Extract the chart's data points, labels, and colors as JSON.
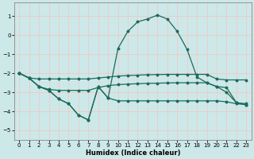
{
  "xlabel": "Humidex (Indice chaleur)",
  "background_color": "#cde8e8",
  "grid_color": "#f2c8c8",
  "line_color": "#1a6b5a",
  "xlim": [
    -0.5,
    23.5
  ],
  "ylim": [
    -5.5,
    1.7
  ],
  "yticks": [
    1,
    0,
    -1,
    -2,
    -3,
    -4,
    -5
  ],
  "xticks": [
    0,
    1,
    2,
    3,
    4,
    5,
    6,
    7,
    8,
    9,
    10,
    11,
    12,
    13,
    14,
    15,
    16,
    17,
    18,
    19,
    20,
    21,
    22,
    23
  ],
  "line1_x": [
    0,
    1,
    2,
    3,
    4,
    5,
    6,
    7,
    8,
    9,
    10,
    11,
    12,
    13,
    14,
    15,
    16,
    17,
    18,
    19,
    20,
    21,
    22,
    23
  ],
  "line1_y": [
    -2.0,
    -2.25,
    -2.7,
    -2.85,
    -2.9,
    -2.9,
    -2.9,
    -2.9,
    -2.75,
    -2.65,
    -2.6,
    -2.57,
    -2.55,
    -2.53,
    -2.52,
    -2.51,
    -2.5,
    -2.5,
    -2.5,
    -2.5,
    -2.7,
    -2.75,
    -3.55,
    -3.6
  ],
  "line2_x": [
    0,
    1,
    2,
    3,
    4,
    5,
    6,
    7,
    8,
    9,
    10,
    11,
    12,
    13,
    14,
    15,
    16,
    17,
    18,
    19,
    20,
    21,
    22,
    23
  ],
  "line2_y": [
    -2.0,
    -2.25,
    -2.7,
    -2.9,
    -3.35,
    -3.6,
    -4.2,
    -4.45,
    -2.7,
    -3.3,
    -3.45,
    -3.45,
    -3.45,
    -3.45,
    -3.45,
    -3.45,
    -3.45,
    -3.45,
    -3.45,
    -3.45,
    -3.45,
    -3.5,
    -3.6,
    -3.65
  ],
  "line3_x": [
    0,
    1,
    2,
    3,
    4,
    5,
    6,
    7,
    8,
    9,
    10,
    11,
    12,
    13,
    14,
    15,
    16,
    17,
    18,
    19,
    20,
    21,
    22,
    23
  ],
  "line3_y": [
    -2.0,
    -2.25,
    -2.7,
    -2.9,
    -3.35,
    -3.6,
    -4.2,
    -4.45,
    -2.7,
    -3.3,
    -0.7,
    0.2,
    0.7,
    0.85,
    1.05,
    0.85,
    0.2,
    -0.75,
    -2.2,
    -2.5,
    -2.7,
    -3.0,
    -3.55,
    -3.65
  ],
  "line4_x": [
    0,
    1,
    2,
    3,
    4,
    5,
    6,
    7,
    8,
    9,
    10,
    11,
    12,
    13,
    14,
    15,
    16,
    17,
    18,
    19,
    20,
    21,
    22,
    23
  ],
  "line4_y": [
    -2.0,
    -2.25,
    -2.3,
    -2.3,
    -2.3,
    -2.3,
    -2.3,
    -2.3,
    -2.25,
    -2.2,
    -2.15,
    -2.12,
    -2.1,
    -2.08,
    -2.07,
    -2.06,
    -2.06,
    -2.06,
    -2.06,
    -2.06,
    -2.3,
    -2.35,
    -2.35,
    -2.35
  ]
}
